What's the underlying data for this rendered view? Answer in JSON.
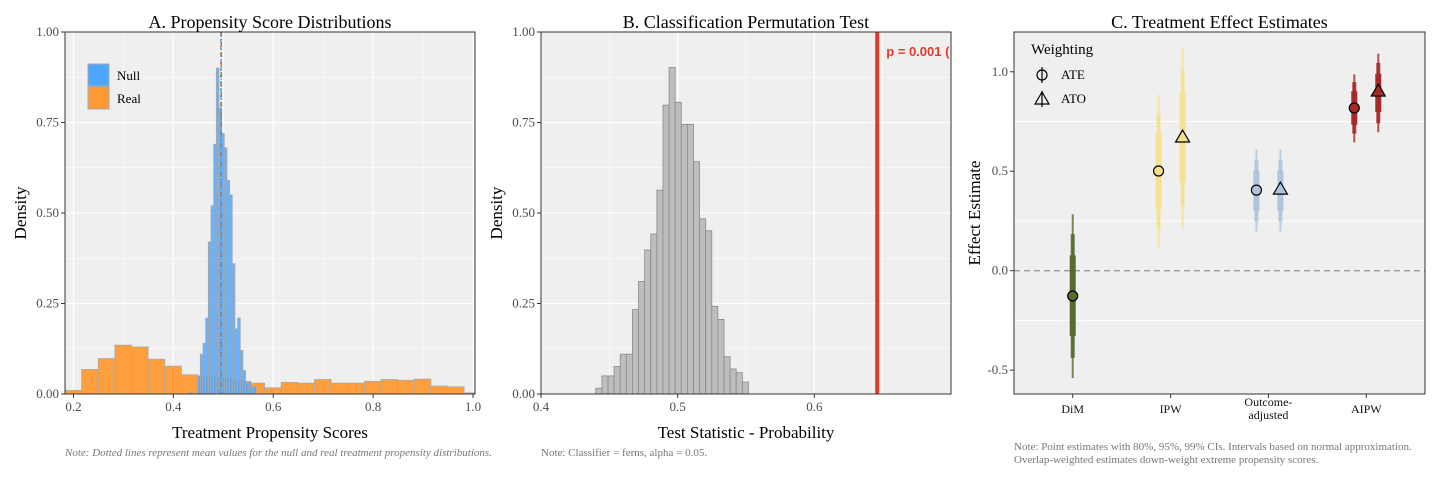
{
  "chart_data": [
    {
      "id": "A",
      "type": "histogram",
      "title": "A. Propensity Score Distributions",
      "xlabel": "Treatment Propensity Scores",
      "ylabel": "Density",
      "xlim": [
        0.183,
        1.004
      ],
      "ylim": [
        0,
        1
      ],
      "grid": true,
      "xticks": [
        0.2,
        0.4,
        0.6,
        0.8,
        1.0
      ],
      "xtick_labels": [
        "0.2",
        "0.4",
        "0.6",
        "0.8",
        "1.0"
      ],
      "yticks": [
        0,
        0.25,
        0.5,
        0.75,
        1.0
      ],
      "ytick_labels": [
        "0.00",
        "0.25",
        "0.50",
        "0.75",
        "1.00"
      ],
      "legend": {
        "position": "top-left",
        "entries": [
          "Null",
          "Real"
        ]
      },
      "series": [
        {
          "name": "Real",
          "color": "#ff9933",
          "bin_start": 0.183,
          "bin_width": 0.0333,
          "values": [
            0.01,
            0.068,
            0.098,
            0.135,
            0.13,
            0.096,
            0.077,
            0.053,
            0.048,
            0.045,
            0.035,
            0.03,
            0.017,
            0.032,
            0.03,
            0.04,
            0.03,
            0.03,
            0.035,
            0.04,
            0.038,
            0.041,
            0.022,
            0.02,
            0.003
          ]
        },
        {
          "name": "Null",
          "color": "#4da6ff",
          "bin_start": 0.4327,
          "bin_width": 0.00533,
          "values": [
            0.005,
            0,
            0,
            0.05,
            0.11,
            0.14,
            0.21,
            0.42,
            0.52,
            0.69,
            0.9,
            0.79,
            0.72,
            0.68,
            0.59,
            0.55,
            0.36,
            0.18,
            0.21,
            0.12,
            0.065,
            0.03,
            0.035,
            0.02,
            0.02
          ]
        }
      ],
      "mean_lines": [
        {
          "series": "Null",
          "x": 0.495,
          "color": "#4da6ff"
        },
        {
          "series": "Real",
          "x": 0.496,
          "color": "#e07000"
        }
      ],
      "note": "Note: Dotted lines represent mean values for the null and real treatment propensity distributions."
    },
    {
      "id": "B",
      "type": "histogram",
      "title": "B. Classification Permutation Test",
      "xlabel": "Test Statistic - Probability",
      "ylabel": "Density",
      "xlim": [
        0.4,
        0.7
      ],
      "ylim": [
        0,
        1
      ],
      "grid": true,
      "xticks": [
        0.4,
        0.5,
        0.6
      ],
      "xtick_labels": [
        "0.4",
        "0.5",
        "0.6"
      ],
      "yticks": [
        0,
        0.25,
        0.5,
        0.75,
        1.0
      ],
      "ytick_labels": [
        "0.00",
        "0.25",
        "0.50",
        "0.75",
        "1.00"
      ],
      "series": [
        {
          "name": "Permutation null",
          "color": "#bebebe",
          "bin_start": 0.4401,
          "bin_width": 0.004467,
          "values": [
            0.016,
            0.05,
            0.05,
            0.076,
            0.11,
            0.11,
            0.233,
            0.311,
            0.398,
            0.442,
            0.563,
            0.798,
            0.902,
            0.806,
            0.745,
            0.745,
            0.642,
            0.484,
            0.451,
            0.242,
            0.206,
            0.103,
            0.069,
            0.059,
            0.033
          ]
        }
      ],
      "observed_line": {
        "x": 0.646,
        "color": "#e03a2f",
        "label": "p = 0.001 ("
      },
      "note": "Note: Classifier = ferns, alpha = 0.05."
    },
    {
      "id": "C",
      "type": "pointrange",
      "title": "C. Treatment Effect Estimates",
      "xlabel": "",
      "ylabel": "Effect Estimate",
      "ylim": [
        -0.62,
        1.2
      ],
      "yticks": [
        -0.5,
        0,
        0.5,
        1.0
      ],
      "ytick_labels": [
        "-0.5",
        "0.0",
        "0.5",
        "1.0"
      ],
      "reference_line": 0,
      "categories": [
        "DiM",
        "IPW",
        "Outcome-\nadjusted",
        "AIPW"
      ],
      "legend": {
        "title": "Weighting",
        "position": "top-left",
        "entries": [
          "ATE",
          "ATO"
        ]
      },
      "colors": {
        "DiM": "#556b2f",
        "IPW": "#f5e08f",
        "Outcome-adjusted": "#b0c4de",
        "AIPW": "#a52a2a"
      },
      "points": [
        {
          "category": 0,
          "weighting": "ATE",
          "dodge": false,
          "estimate": -0.127,
          "ci80": [
            -0.329,
            0.077
          ],
          "ci95": [
            -0.439,
            0.183
          ],
          "ci99": [
            -0.54,
            0.284
          ]
        },
        {
          "category": 1,
          "weighting": "ATE",
          "dodge": true,
          "estimate": 0.501,
          "ci80": [
            0.308,
            0.69
          ],
          "ci95": [
            0.208,
            0.79
          ],
          "ci99": [
            0.116,
            0.884
          ]
        },
        {
          "category": 1,
          "weighting": "ATO",
          "dodge": true,
          "estimate": 0.672,
          "ci80": [
            0.444,
            0.889
          ],
          "ci95": [
            0.323,
            1.008
          ],
          "ci99": [
            0.213,
            1.116
          ]
        },
        {
          "category": 2,
          "weighting": "ATE",
          "dodge": true,
          "estimate": 0.405,
          "ci80": [
            0.3,
            0.504
          ],
          "ci95": [
            0.247,
            0.558
          ],
          "ci99": [
            0.197,
            0.608
          ]
        },
        {
          "category": 2,
          "weighting": "ATO",
          "dodge": true,
          "estimate": 0.41,
          "ci80": [
            0.3,
            0.504
          ],
          "ci95": [
            0.247,
            0.558
          ],
          "ci99": [
            0.197,
            0.608
          ]
        },
        {
          "category": 3,
          "weighting": "ATE",
          "dodge": true,
          "estimate": 0.818,
          "ci80": [
            0.734,
            0.903
          ],
          "ci95": [
            0.689,
            0.948
          ],
          "ci99": [
            0.645,
            0.987
          ]
        },
        {
          "category": 3,
          "weighting": "ATO",
          "dodge": true,
          "estimate": 0.903,
          "ci80": [
            0.797,
            0.99
          ],
          "ci95": [
            0.741,
            1.045
          ],
          "ci99": [
            0.696,
            1.091
          ]
        }
      ],
      "note": [
        "Note: Point estimates with 80%, 95%, 99% CIs. Intervals based on normal approximation.",
        "Overlap-weighted estimates down-weight extreme propensity scores."
      ]
    }
  ]
}
